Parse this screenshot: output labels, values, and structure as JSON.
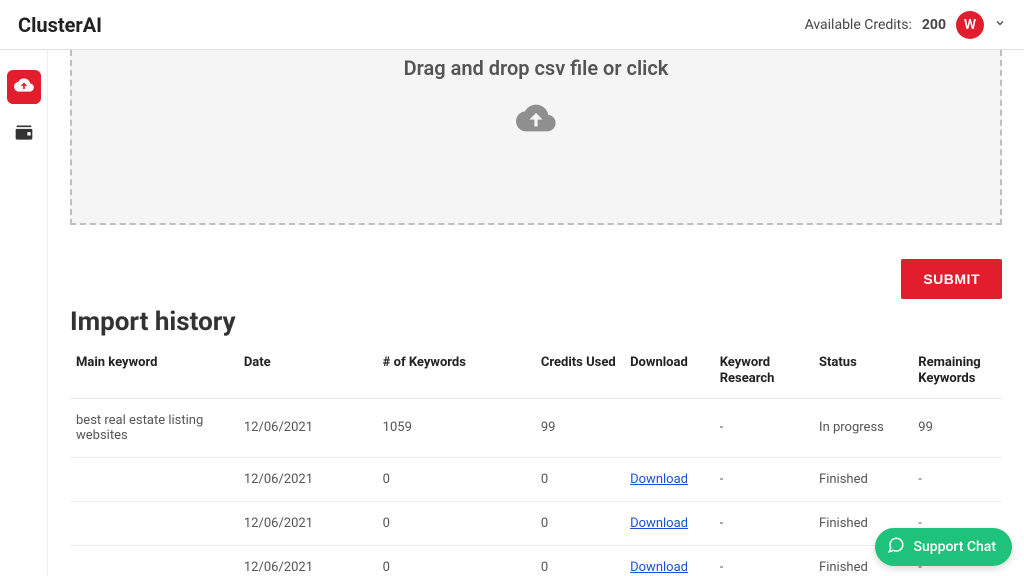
{
  "brand": "ClusterAI",
  "header": {
    "credits_label": "Available Credits:",
    "credits_value": "200",
    "avatar_initial": "W"
  },
  "dropzone": {
    "title": "Drag and drop csv file or click"
  },
  "buttons": {
    "submit": "SUBMIT"
  },
  "history": {
    "title": "Import history",
    "columns": {
      "main_keyword": "Main keyword",
      "date": "Date",
      "num_keywords": "# of Keywords",
      "credits_used": "Credits Used",
      "download": "Download",
      "keyword_research": "Keyword Research",
      "status": "Status",
      "remaining": "Remaining Keywords"
    },
    "rows": [
      {
        "main_keyword": "best real estate listing websites",
        "date": "12/06/2021",
        "num_keywords": "1059",
        "credits_used": "99",
        "download": "",
        "keyword_research": "-",
        "status": "In progress",
        "remaining": "99"
      },
      {
        "main_keyword": "",
        "date": "12/06/2021",
        "num_keywords": "0",
        "credits_used": "0",
        "download": "Download",
        "keyword_research": "-",
        "status": "Finished",
        "remaining": "-"
      },
      {
        "main_keyword": "",
        "date": "12/06/2021",
        "num_keywords": "0",
        "credits_used": "0",
        "download": "Download",
        "keyword_research": "-",
        "status": "Finished",
        "remaining": "-"
      },
      {
        "main_keyword": "",
        "date": "12/06/2021",
        "num_keywords": "0",
        "credits_used": "0",
        "download": "Download",
        "keyword_research": "-",
        "status": "Finished",
        "remaining": "-"
      }
    ]
  },
  "support_chat": {
    "label": "Support Chat"
  },
  "colors": {
    "accent": "#e11d2e",
    "support": "#1ec27a",
    "link": "#1a4fd6",
    "border": "#e6e6e6",
    "dropzone_bg": "#f5f5f5"
  }
}
